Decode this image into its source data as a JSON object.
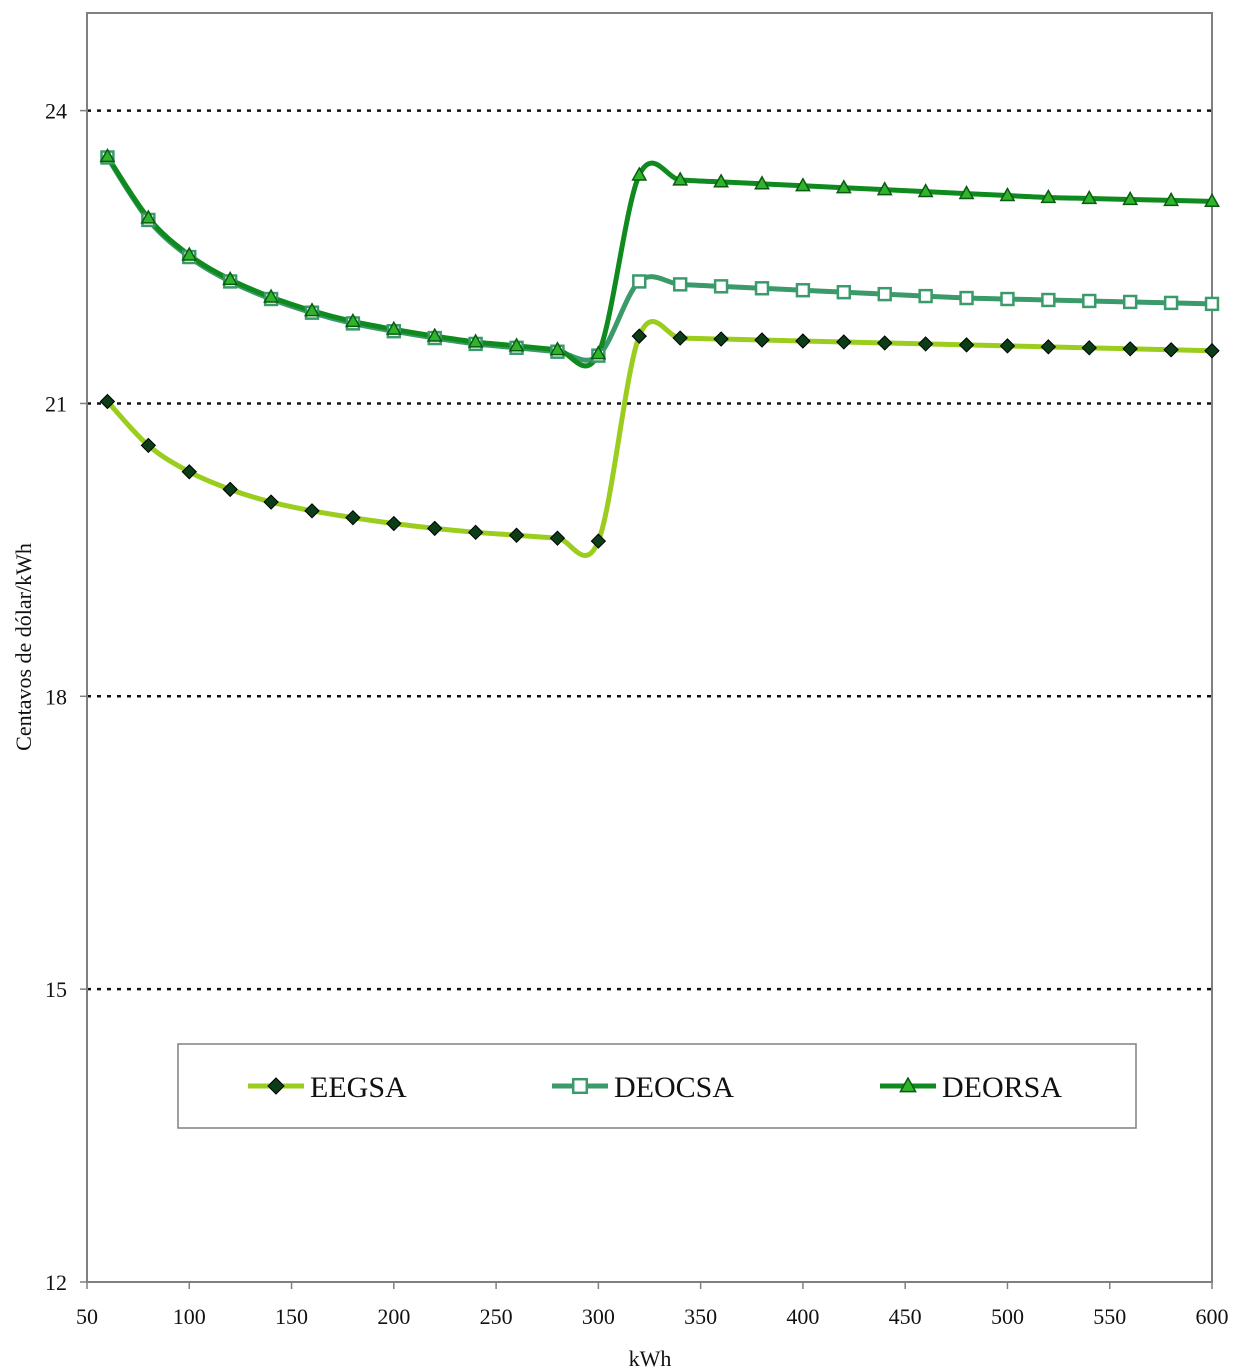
{
  "chart_data": {
    "type": "line",
    "title": "",
    "xlabel": "kWh",
    "ylabel": "Centavos de dólar/kWh",
    "xlim": [
      50,
      600
    ],
    "ylim": [
      12,
      25
    ],
    "x_ticks": [
      50,
      100,
      150,
      200,
      250,
      300,
      350,
      400,
      450,
      500,
      550,
      600
    ],
    "y_ticks": [
      12,
      15,
      18,
      21,
      24
    ],
    "gridlines_y": [
      15,
      18,
      21,
      24
    ],
    "grid": "horizontal dotted",
    "legend_position": "bottom-center inside plot",
    "x": [
      60,
      80,
      100,
      120,
      140,
      160,
      180,
      200,
      220,
      240,
      260,
      280,
      300,
      320,
      340,
      360,
      380,
      400,
      420,
      440,
      460,
      480,
      500,
      520,
      540,
      560,
      580,
      600
    ],
    "series": [
      {
        "name": "EEGSA",
        "marker": "diamond",
        "line_color": "#9acd1e",
        "marker_color": "#0b3d16",
        "values": [
          21.02,
          20.57,
          20.3,
          20.12,
          19.99,
          19.9,
          19.83,
          19.77,
          19.72,
          19.68,
          19.65,
          19.62,
          19.59,
          21.69,
          21.67,
          21.66,
          21.65,
          21.64,
          21.63,
          21.62,
          21.61,
          21.6,
          21.59,
          21.58,
          21.57,
          21.56,
          21.55,
          21.54
        ]
      },
      {
        "name": "DEOCSA",
        "marker": "square",
        "line_color": "#3a9a6a",
        "marker_color": "#3a9a6a",
        "values": [
          23.52,
          22.88,
          22.5,
          22.25,
          22.07,
          21.93,
          21.82,
          21.74,
          21.67,
          21.61,
          21.57,
          21.53,
          21.49,
          22.25,
          22.22,
          22.2,
          22.18,
          22.16,
          22.14,
          22.12,
          22.1,
          22.08,
          22.07,
          22.06,
          22.05,
          22.04,
          22.03,
          22.02
        ]
      },
      {
        "name": "DEORSA",
        "marker": "triangle",
        "line_color": "#0f8a1e",
        "marker_color": "#2fb52a",
        "values": [
          23.53,
          22.9,
          22.52,
          22.27,
          22.09,
          21.95,
          21.84,
          21.76,
          21.69,
          21.63,
          21.59,
          21.55,
          21.51,
          23.34,
          23.29,
          23.27,
          23.25,
          23.23,
          23.21,
          23.19,
          23.17,
          23.15,
          23.13,
          23.11,
          23.1,
          23.09,
          23.08,
          23.07
        ]
      }
    ]
  }
}
